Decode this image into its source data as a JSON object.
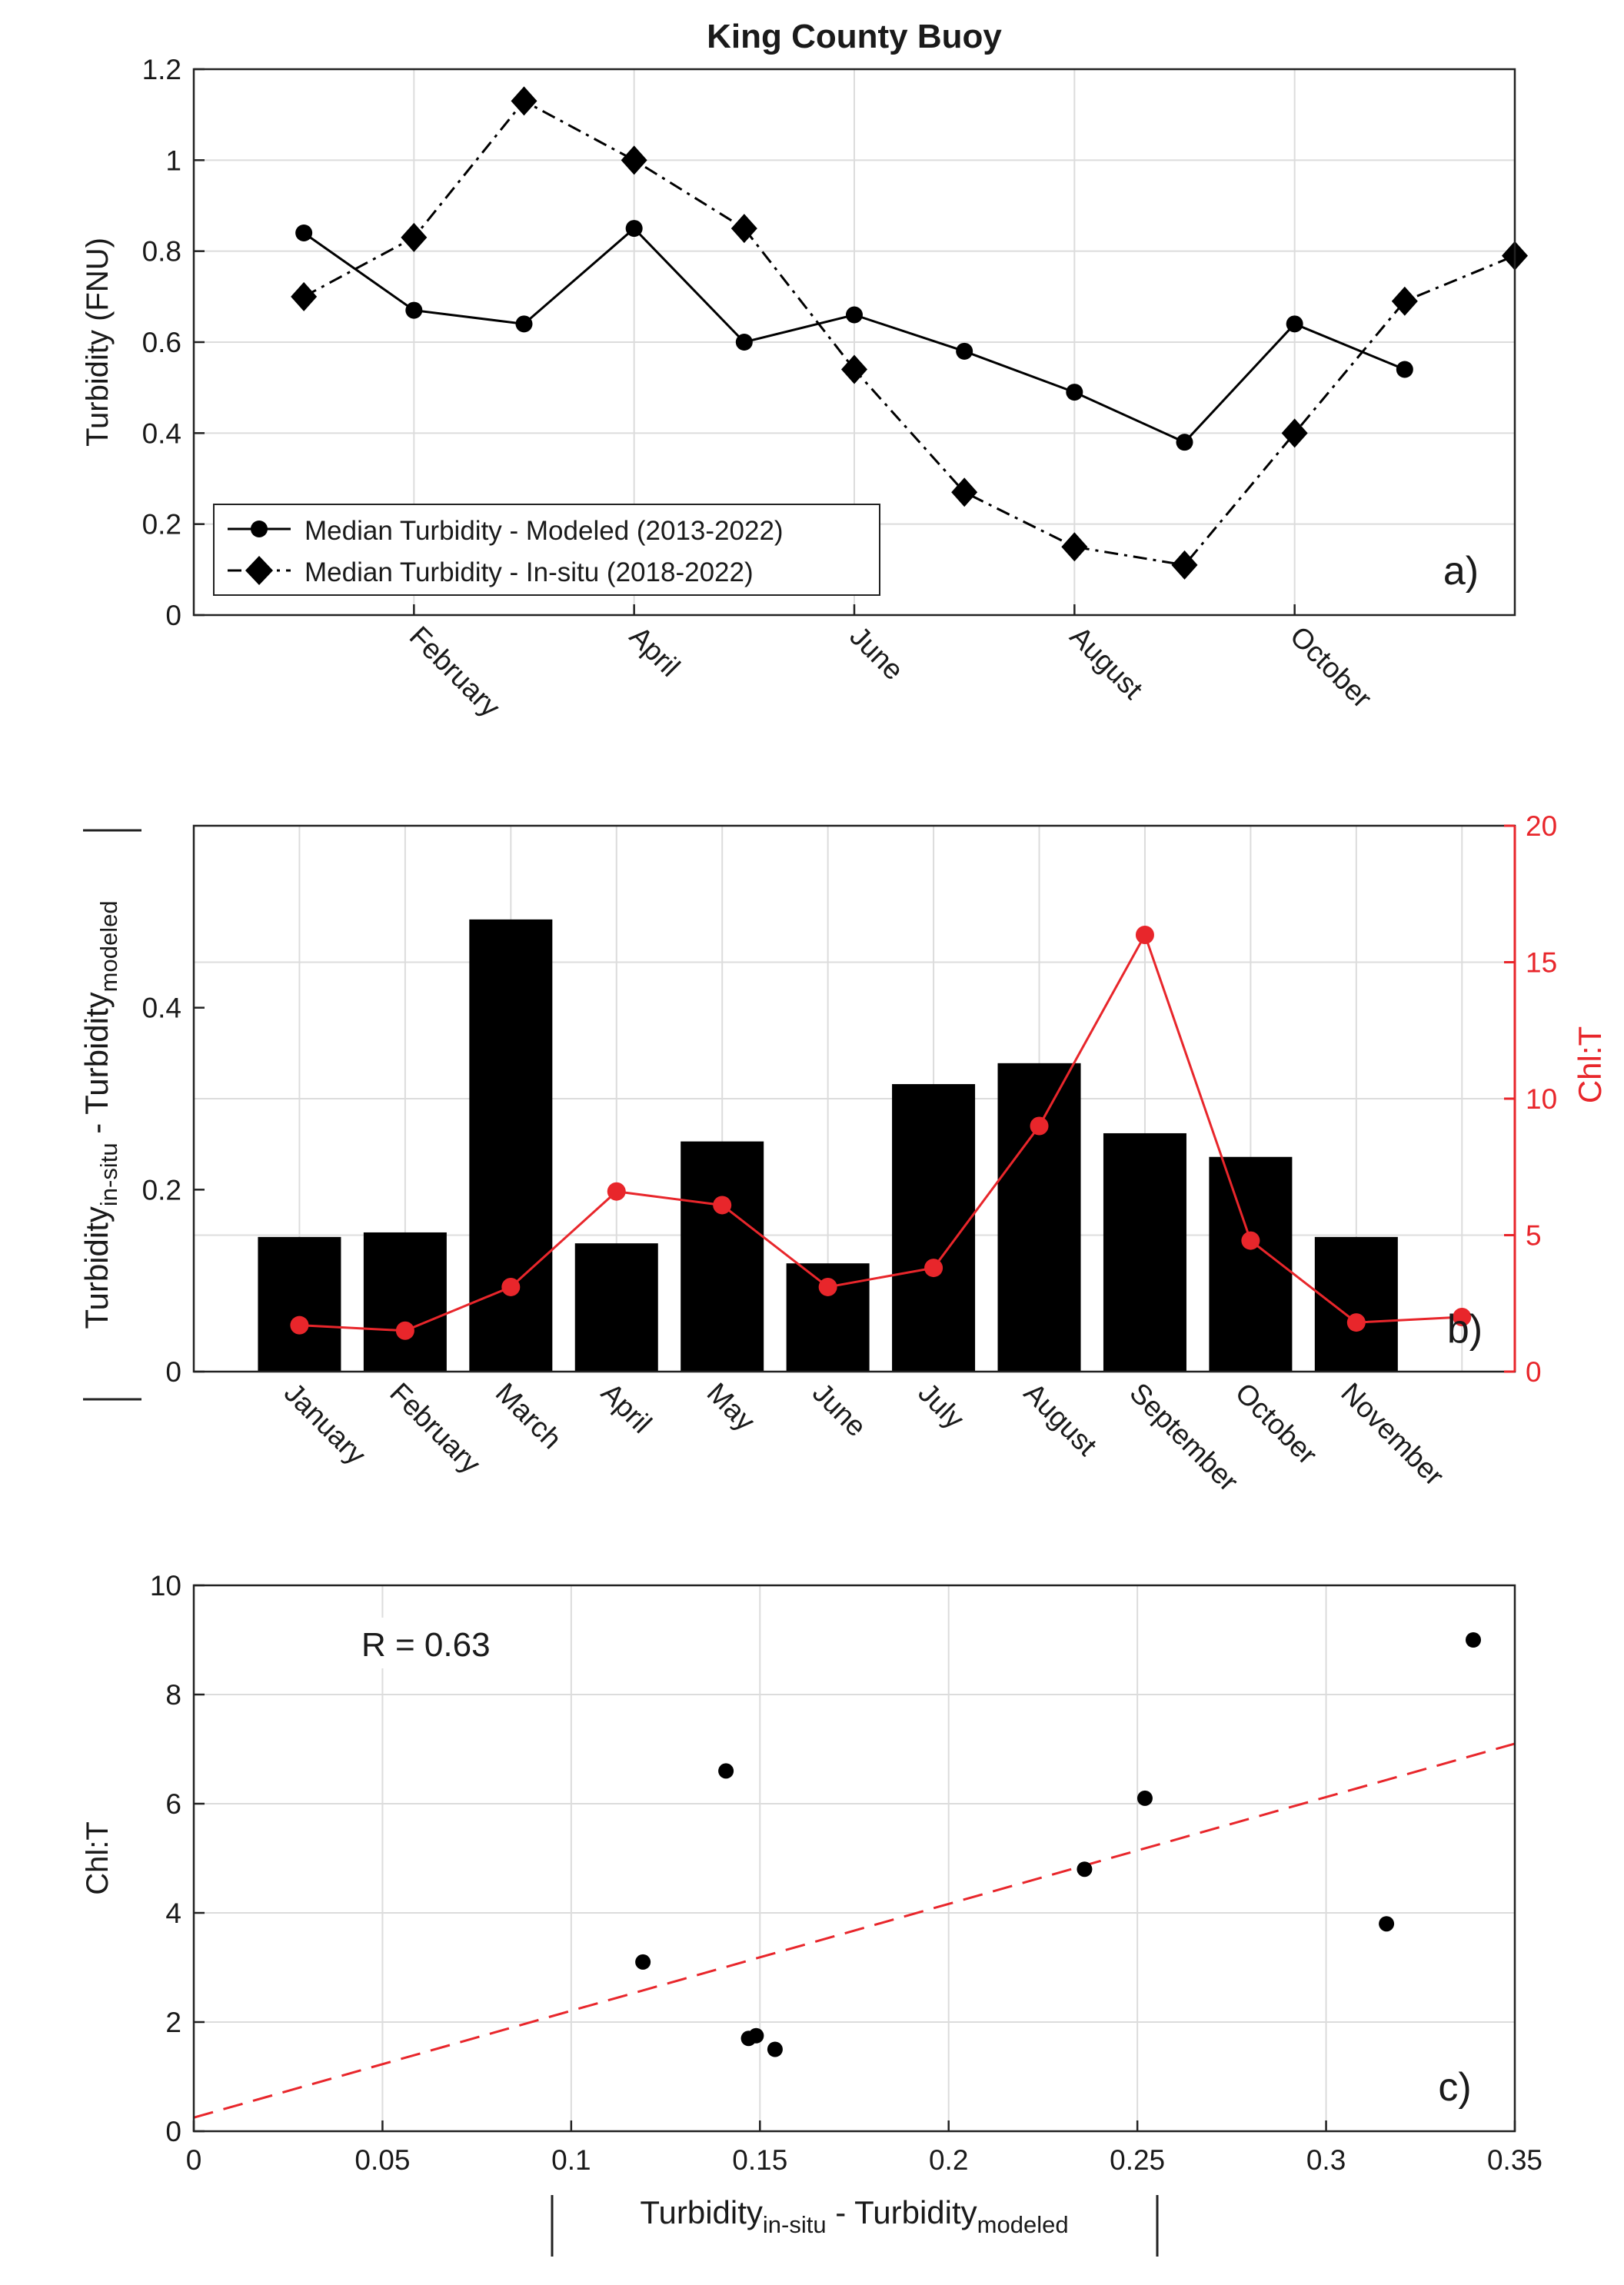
{
  "colors": {
    "axis": "#222222",
    "grid": "#dcdcdc",
    "red": "#e8262b",
    "black": "#000000"
  },
  "chart_data": [
    {
      "id": "a",
      "type": "line",
      "title": "King County Buoy",
      "panel_label": "a)",
      "ylabel": "Turbidity (FNU)",
      "xlabel": "",
      "xlim": [
        0,
        12
      ],
      "ylim": [
        0,
        1.2
      ],
      "yticks": [
        0,
        0.2,
        0.4,
        0.6,
        0.8,
        1,
        1.2
      ],
      "ytick_labels": [
        "0",
        "0.2",
        "0.4",
        "0.6",
        "0.8",
        "1",
        "1.2"
      ],
      "xticks": [
        2,
        4,
        6,
        8,
        10
      ],
      "xtick_labels": [
        "February",
        "April",
        "June",
        "August",
        "October"
      ],
      "legend_position": "bottom-left",
      "series": [
        {
          "name": "Median Turbidity - Modeled (2013-2022)",
          "marker": "circle",
          "line": "solid",
          "x": [
            1,
            2,
            3,
            4,
            5,
            6,
            7,
            8,
            9,
            10,
            11
          ],
          "values": [
            0.84,
            0.67,
            0.64,
            0.85,
            0.6,
            0.66,
            0.58,
            0.49,
            0.38,
            0.64,
            0.54
          ]
        },
        {
          "name": "Median Turbidity - In-situ (2018-2022)",
          "marker": "diamond",
          "line": "dashdot",
          "x": [
            1,
            2,
            3,
            4,
            5,
            6,
            7,
            8,
            9,
            10,
            11,
            12
          ],
          "values": [
            0.7,
            0.83,
            1.13,
            1.0,
            0.85,
            0.54,
            0.27,
            0.15,
            0.11,
            0.4,
            0.69,
            0.79
          ]
        }
      ]
    },
    {
      "id": "b",
      "type": "bar",
      "panel_label": "b)",
      "ylabel_main": "Turbidity",
      "ylabel_sub1": "in-situ",
      "ylabel_mid": " - Turbidity",
      "ylabel_sub2": "modeled",
      "ylabel_right": "Chl:T",
      "ylim": [
        0,
        0.6
      ],
      "yticks": [
        0,
        0.2,
        0.4
      ],
      "ytick_labels": [
        "0",
        "0.2",
        "0.4"
      ],
      "ylim_right": [
        0,
        20
      ],
      "yticks_right": [
        0,
        5,
        10,
        15,
        20
      ],
      "ytick_labels_right": [
        "0",
        "5",
        "10",
        "15",
        "20"
      ],
      "categories": [
        "January",
        "February",
        "March",
        "April",
        "May",
        "June",
        "July",
        "August",
        "September",
        "October",
        "November"
      ],
      "values": [
        0.148,
        0.153,
        0.497,
        0.141,
        0.253,
        0.119,
        0.316,
        0.339,
        0.262,
        0.236,
        0.148
      ],
      "line_series": {
        "name": "Chl:T",
        "x": [
          1,
          2,
          3,
          4,
          5,
          6,
          7,
          8,
          9,
          10,
          11,
          12
        ],
        "values": [
          1.7,
          1.5,
          3.1,
          6.6,
          6.1,
          3.1,
          3.8,
          9.0,
          16.0,
          4.8,
          1.8,
          2.0
        ]
      }
    },
    {
      "id": "c",
      "type": "scatter",
      "panel_label": "c)",
      "annotation": "R = 0.63",
      "ylabel": "Chl:T",
      "xlabel_main": "Turbidity",
      "xlabel_sub1": "in-situ",
      "xlabel_mid": " - Turbidity",
      "xlabel_sub2": "modeled",
      "xlim": [
        0,
        0.35
      ],
      "ylim": [
        0,
        10
      ],
      "xticks": [
        0,
        0.05,
        0.1,
        0.15,
        0.2,
        0.25,
        0.3,
        0.35
      ],
      "xtick_labels": [
        "0",
        "0.05",
        "0.1",
        "0.15",
        "0.2",
        "0.25",
        "0.3",
        "0.35"
      ],
      "yticks": [
        0,
        2,
        4,
        6,
        8,
        10
      ],
      "ytick_labels": [
        "0",
        "2",
        "4",
        "6",
        "8",
        "10"
      ],
      "points": [
        {
          "x": 0.119,
          "y": 3.1
        },
        {
          "x": 0.141,
          "y": 6.6
        },
        {
          "x": 0.147,
          "y": 1.7
        },
        {
          "x": 0.149,
          "y": 1.75
        },
        {
          "x": 0.154,
          "y": 1.5
        },
        {
          "x": 0.236,
          "y": 4.8
        },
        {
          "x": 0.252,
          "y": 6.1
        },
        {
          "x": 0.316,
          "y": 3.8
        },
        {
          "x": 0.339,
          "y": 9.0
        }
      ],
      "fit_line": {
        "style": "dashed",
        "x": [
          0,
          0.35
        ],
        "y": [
          0.25,
          7.1
        ]
      }
    }
  ]
}
